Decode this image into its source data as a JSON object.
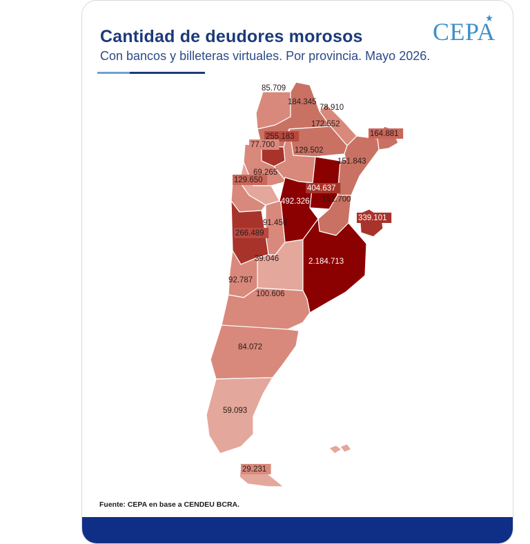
{
  "header": {
    "title": "Cantidad de deudores morosos",
    "subtitle": "Con bancos y billeteras virtuales. Por provincia. Mayo 2026.",
    "logo_text": "CEPA"
  },
  "footer": {
    "source": "Fuente: CEPA en base a CENDEU BCRA."
  },
  "colors": {
    "title": "#1c3a7a",
    "subtitle": "#2c4a86",
    "logo": "#3f8fc8",
    "footer_bar": "#0f2f86",
    "scale_light": "#e4a79b",
    "scale_mid": "#c97264",
    "scale_strong": "#a8332a",
    "scale_max": "#8b0000",
    "province_border": "#ffffff"
  },
  "map_data": {
    "measure": "Cantidad de deudores morosos",
    "regions": [
      {
        "id": "jujuy",
        "value": "85.709",
        "v": 85709
      },
      {
        "id": "salta",
        "value": "184.345",
        "v": 184345
      },
      {
        "id": "formosa",
        "value": "78.910",
        "v": 78910
      },
      {
        "id": "chaco",
        "value": "172.552",
        "v": 172552
      },
      {
        "id": "misiones",
        "value": "164.881",
        "v": 164881
      },
      {
        "id": "tucuman",
        "value": "255.183",
        "v": 255183
      },
      {
        "id": "catamarca",
        "value": "77.700",
        "v": 77700
      },
      {
        "id": "santiago-del-estero",
        "value": "129.502",
        "v": 129502
      },
      {
        "id": "corrientes",
        "value": "151.843",
        "v": 151843
      },
      {
        "id": "la-rioja",
        "value": "69.265",
        "v": 69265
      },
      {
        "id": "san-juan",
        "value": "129.650",
        "v": 129650
      },
      {
        "id": "santa-fe",
        "value": "404.637",
        "v": 404637
      },
      {
        "id": "cordoba",
        "value": "492.326",
        "v": 492326
      },
      {
        "id": "entre-rios",
        "value": "151.700",
        "v": 151700
      },
      {
        "id": "caba",
        "value": "339.101",
        "v": 339101
      },
      {
        "id": "san-luis",
        "value": "91.456",
        "v": 91456
      },
      {
        "id": "mendoza",
        "value": "266.489",
        "v": 266489
      },
      {
        "id": "la-pampa",
        "value": "39.046",
        "v": 39046
      },
      {
        "id": "buenos-aires",
        "value": "2.184.713",
        "v": 2184713
      },
      {
        "id": "neuquen",
        "value": "92.787",
        "v": 92787
      },
      {
        "id": "rio-negro",
        "value": "100.606",
        "v": 100606
      },
      {
        "id": "chubut",
        "value": "84.072",
        "v": 84072
      },
      {
        "id": "santa-cruz",
        "value": "59.093",
        "v": 59093
      },
      {
        "id": "tierra-del-fuego",
        "value": "29.231",
        "v": 29231
      }
    ]
  }
}
